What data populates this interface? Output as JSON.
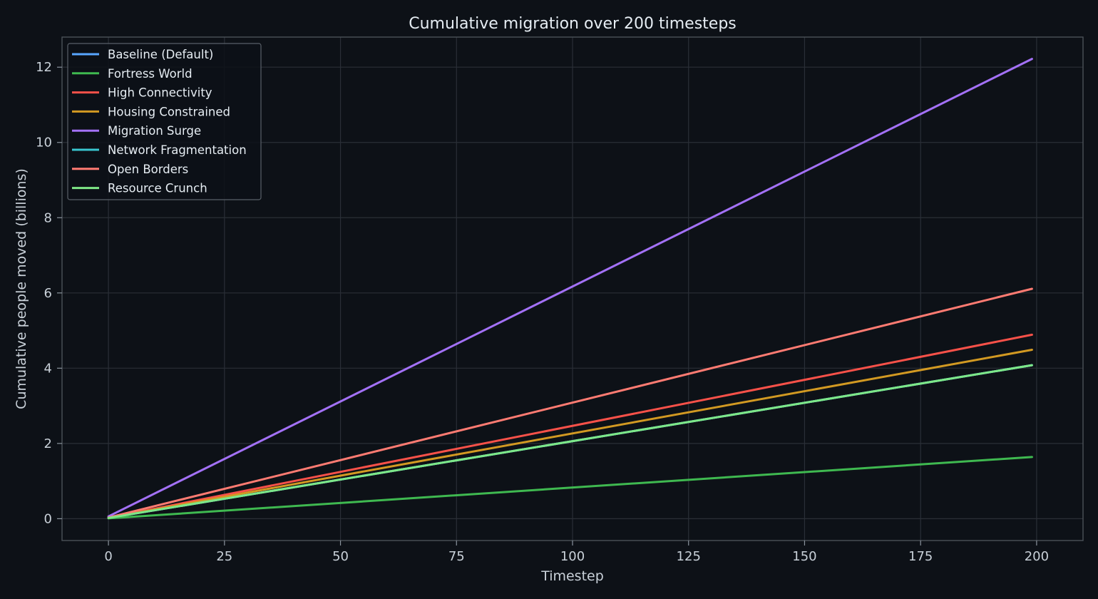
{
  "chart_data": {
    "type": "line",
    "title": "Cumulative migration over 200 timesteps",
    "xlabel": "Timestep",
    "ylabel": "Cumulative people moved (billions)",
    "xlim": [
      -10,
      210
    ],
    "ylim": [
      -0.58,
      12.8
    ],
    "xticks": [
      0,
      25,
      50,
      75,
      100,
      125,
      150,
      175,
      200
    ],
    "yticks": [
      0,
      2,
      4,
      6,
      8,
      10,
      12
    ],
    "grid": true,
    "legend_position": "top-left",
    "background": "#0d1117",
    "grid_color": "#2a2f37",
    "x": [
      0,
      199
    ],
    "series": [
      {
        "name": "Baseline (Default)",
        "color": "#58a6ff",
        "values": [
          0.02,
          4.08
        ]
      },
      {
        "name": "Fortress World",
        "color": "#3fb950",
        "values": [
          0.01,
          1.64
        ]
      },
      {
        "name": "High Connectivity",
        "color": "#f85149",
        "values": [
          0.02,
          4.89
        ]
      },
      {
        "name": "Housing Constrained",
        "color": "#d29922",
        "values": [
          0.02,
          4.49
        ]
      },
      {
        "name": "Migration Surge",
        "color": "#a371f7",
        "values": [
          0.06,
          12.22
        ]
      },
      {
        "name": "Network Fragmentation",
        "color": "#39c5cf",
        "values": [
          0.02,
          4.08
        ]
      },
      {
        "name": "Open Borders",
        "color": "#ff7b72",
        "values": [
          0.03,
          6.11
        ]
      },
      {
        "name": "Resource Crunch",
        "color": "#7ee787",
        "values": [
          0.02,
          4.08
        ]
      }
    ]
  }
}
